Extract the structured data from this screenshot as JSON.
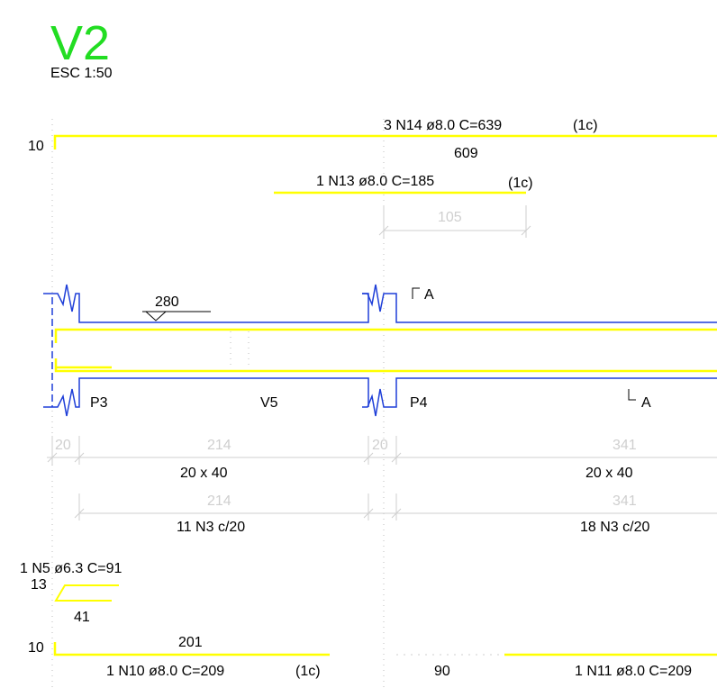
{
  "title": {
    "name": "V2",
    "scale": "ESC 1:50"
  },
  "colors": {
    "title": "#22dd22",
    "rebar": "#ffff00",
    "outline": "#1f3fd8",
    "dimension": "#cfcfcf",
    "text": "#000000"
  },
  "top_bars": {
    "n14_label": "3 N14 ø8.0  C=639",
    "n14_layer": "(1c)",
    "n14_hook": "10",
    "n14_length": "609",
    "n13_label": "1 N13 ø8.0  C=185",
    "n13_layer": "(1c)",
    "n13_dim": "105"
  },
  "elevation": {
    "level_value": "280",
    "section_mark_top": "A",
    "section_mark_bottom": "A",
    "column_p3": "P3",
    "beam_v5": "V5",
    "column_p4": "P4"
  },
  "dimensions": {
    "p3_width": "20",
    "span1": "214",
    "p4_width": "20",
    "span2": "341",
    "section1": "20 x 40",
    "section2": "20 x 40",
    "stirrup_span1": "214",
    "stirrup_span2": "341",
    "stirrups1": "11 N3 c/20",
    "stirrups2": "18 N3 c/20"
  },
  "bottom_bars": {
    "n5_label": "1 N5 ø6.3  C=91",
    "n5_hook": "13",
    "n5_length": "41",
    "n10_hook": "10",
    "n10_length": "201",
    "n10_label": "1 N10 ø8.0  C=209",
    "n10_layer": "(1c)",
    "n11_start": "90",
    "n11_label": "1 N11 ø8.0  C=209"
  }
}
